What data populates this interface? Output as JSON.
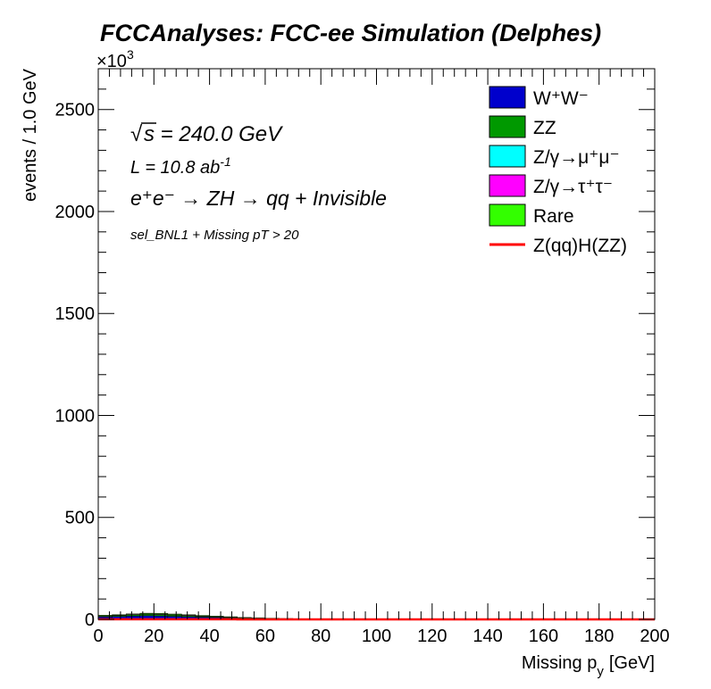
{
  "chart_data": {
    "type": "bar",
    "stacked": true,
    "title": "FCCAnalyses: FCC-ee Simulation (Delphes)",
    "xlabel_main": "Missing p",
    "xlabel_sub": "y",
    "xlabel_unit": "[GeV]",
    "ylabel": "events / 1.0 GeV",
    "y_multiplier": "×10",
    "y_multiplier_exp": "3",
    "xlim": [
      0,
      200
    ],
    "ylim": [
      0,
      2700
    ],
    "xticks": [
      "0",
      "20",
      "40",
      "60",
      "80",
      "100",
      "120",
      "140",
      "160",
      "180",
      "200"
    ],
    "xtick_values": [
      0,
      20,
      40,
      60,
      80,
      100,
      120,
      140,
      160,
      180,
      200
    ],
    "yticks": [
      "0",
      "500",
      "1000",
      "1500",
      "2000",
      "2500"
    ],
    "ytick_values": [
      0,
      500,
      1000,
      1500,
      2000,
      2500
    ],
    "grid": false,
    "legend_position": "top-right",
    "annotations": {
      "sqrt_s": "s",
      "energy": " = 240.0 GeV",
      "lumi_prefix": "L = 10.8 ab",
      "lumi_exp": "-1",
      "process": "e⁺e⁻ → ZH → qq + Invisible",
      "selection": "sel_BNL1 + Missing pT > 20"
    },
    "bin_edges": [
      0,
      5,
      10,
      15,
      20,
      25,
      30,
      35,
      40,
      45,
      50,
      55,
      60,
      65,
      70,
      75,
      80,
      200
    ],
    "series": [
      {
        "name": "W⁺W⁻",
        "color": "#0000cc",
        "values": [
          12,
          14,
          16,
          18,
          17,
          15,
          13,
          11,
          9,
          7,
          5,
          4,
          3,
          2,
          1,
          0.5,
          0
        ]
      },
      {
        "name": "ZZ",
        "color": "#009900",
        "values": [
          6,
          7,
          8,
          9,
          9,
          8,
          7,
          6,
          5,
          4,
          3,
          2.5,
          2,
          1.5,
          1,
          0.5,
          0
        ]
      },
      {
        "name": "Z/γ→μ⁺μ⁻",
        "color": "#00ffff",
        "values": [
          0,
          0,
          0,
          0,
          0,
          0,
          0,
          0,
          0,
          0,
          0,
          0,
          0,
          0,
          0,
          0,
          0
        ]
      },
      {
        "name": "Z/γ→τ⁺τ⁻",
        "color": "#ff00ff",
        "values": [
          0.5,
          0.5,
          0.5,
          0.5,
          0.5,
          0.5,
          0.5,
          0.5,
          0.3,
          0.3,
          0.2,
          0.2,
          0.1,
          0.1,
          0,
          0,
          0
        ]
      },
      {
        "name": "Rare",
        "color": "#33ff00",
        "values": [
          2,
          2,
          3,
          3,
          3,
          3,
          3,
          2,
          2,
          2,
          1.5,
          1.5,
          1,
          1,
          0.5,
          0.3,
          0
        ]
      }
    ],
    "signal": {
      "name": "Z(qq)H(ZZ)",
      "color": "#ff0000",
      "values": [
        0.3,
        0.3,
        0.3,
        0.3,
        0.3,
        0.3,
        0.3,
        0.3,
        0.3,
        0.3,
        0.2,
        0.2,
        0.2,
        0.1,
        0.1,
        0.1,
        0.1
      ]
    }
  }
}
